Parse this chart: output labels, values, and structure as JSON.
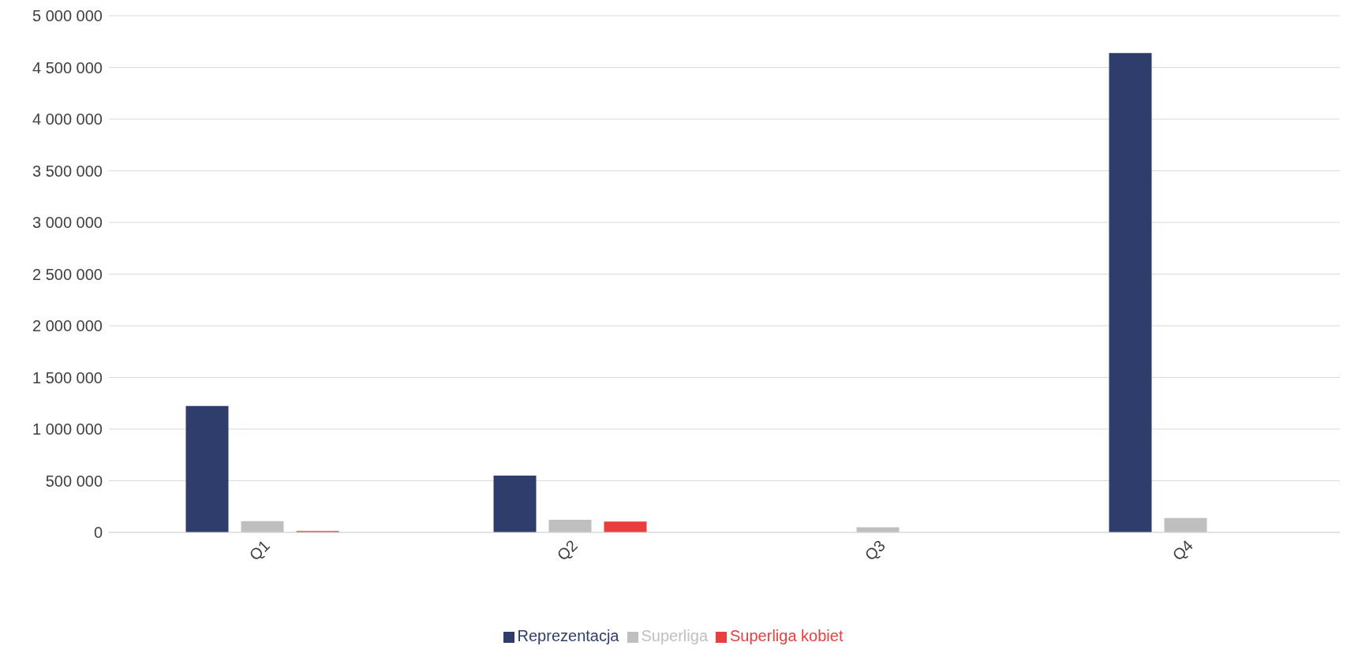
{
  "chart_data": {
    "type": "bar",
    "categories": [
      "Q1",
      "Q2",
      "Q3",
      "Q4"
    ],
    "series": [
      {
        "name": "Reprezentacja",
        "color": "#2f3d6d",
        "values": [
          1223000,
          550000,
          null,
          4640000
        ]
      },
      {
        "name": "Superliga",
        "color": "#bfbfbf",
        "values": [
          109000,
          123000,
          50000,
          140000
        ]
      },
      {
        "name": "Superliga kobiet",
        "color": "#e83e3e",
        "values": [
          14000,
          105000,
          null,
          null
        ]
      }
    ],
    "ylim": [
      0,
      5000000
    ],
    "yticks": [
      {
        "value": 0,
        "label": "0"
      },
      {
        "value": 500000,
        "label": "500 000"
      },
      {
        "value": 1000000,
        "label": "1 000 000"
      },
      {
        "value": 1500000,
        "label": "1 500 000"
      },
      {
        "value": 2000000,
        "label": "2 000 000"
      },
      {
        "value": 2500000,
        "label": "2 500 000"
      },
      {
        "value": 3000000,
        "label": "3 000 000"
      },
      {
        "value": 3500000,
        "label": "3 500 000"
      },
      {
        "value": 4000000,
        "label": "4 000 000"
      },
      {
        "value": 4500000,
        "label": "4 500 000"
      },
      {
        "value": 5000000,
        "label": "5 000 000"
      }
    ],
    "grid": "y",
    "legend": "bottom"
  }
}
